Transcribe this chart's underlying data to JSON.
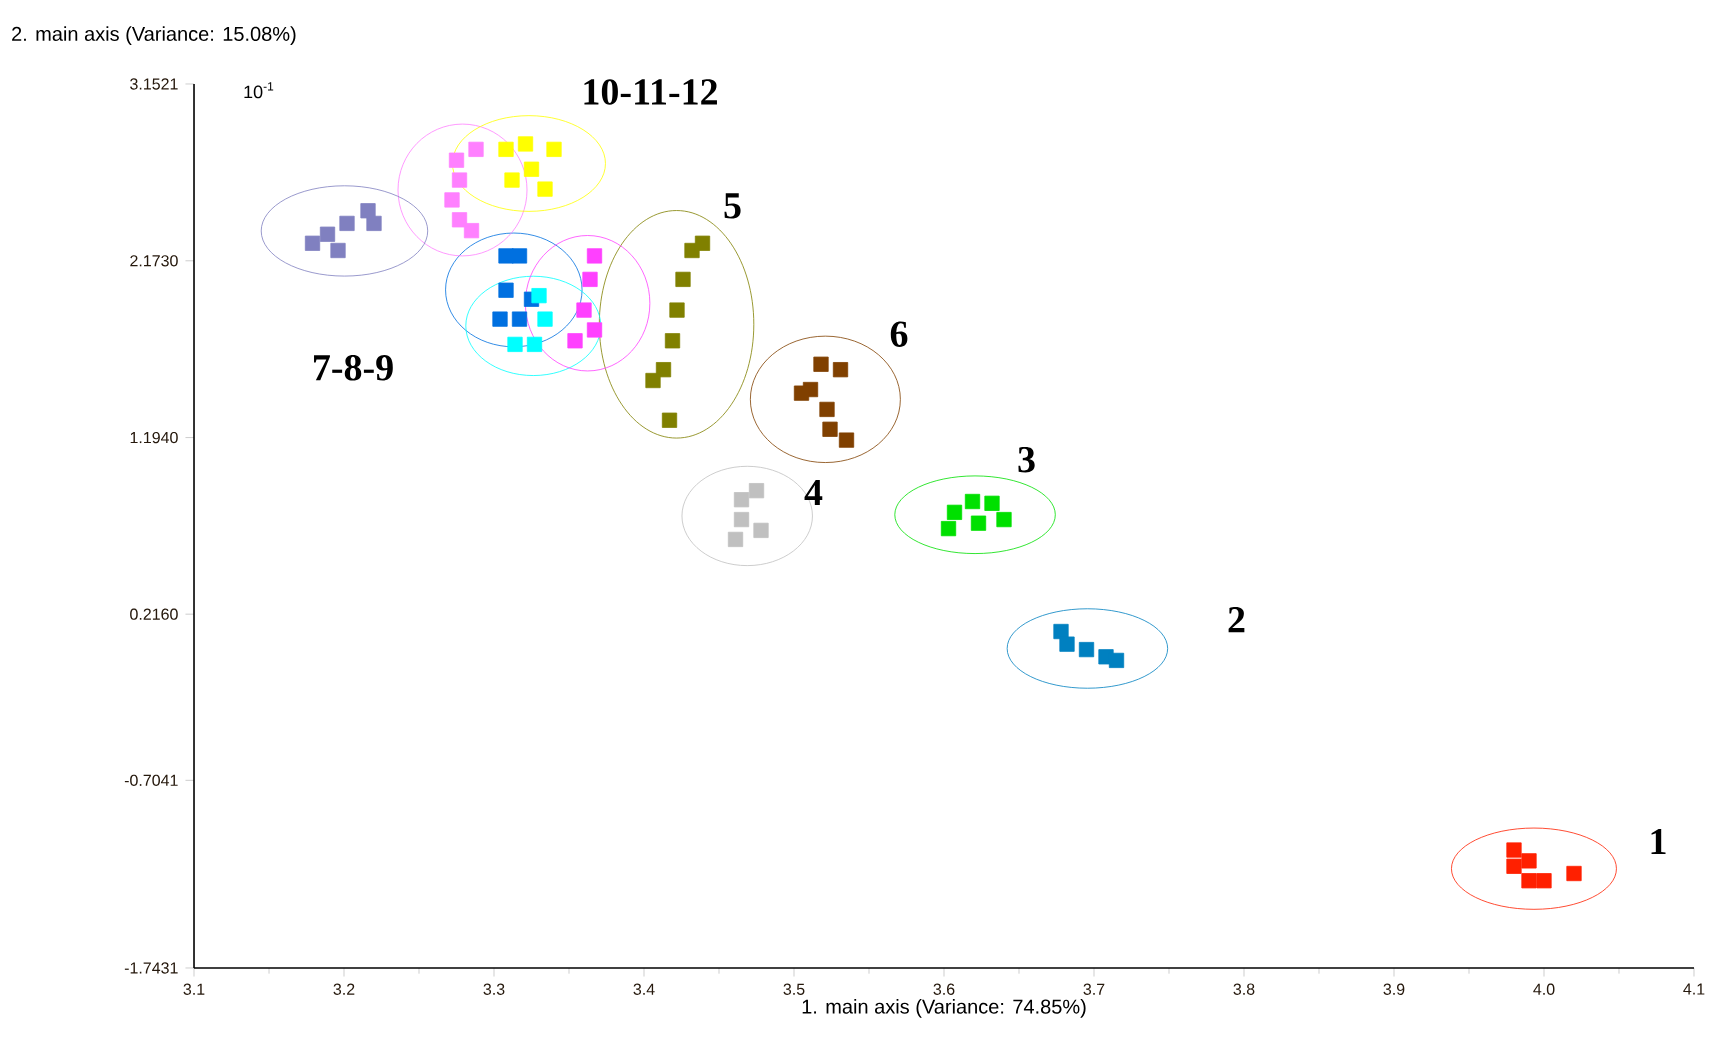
{
  "chart_data": {
    "type": "scatter",
    "xlabel": "1. main axis (Variance: 74.85%)",
    "ylabel": "2. main axis (Variance: 15.08%)",
    "xlim": [
      3.1,
      4.1
    ],
    "ylim": [
      -1.7431,
      3.1521
    ],
    "xticks": [
      3.1,
      3.2,
      3.3,
      3.4,
      3.5,
      3.6,
      3.7,
      3.8,
      3.9,
      {
        "value": 4.0,
        "label": "4.0"
      },
      4.1
    ],
    "yticks": [
      -1.7431,
      -0.7041,
      {
        "value": 0.216,
        "label": "0.2160"
      },
      {
        "value": 1.194,
        "label": "1.1940"
      },
      {
        "value": 2.173,
        "label": "2.1730"
      },
      3.1521
    ],
    "marker": "square",
    "series": [
      {
        "color": "#ff2000",
        "x": [
          3.98,
          3.98,
          3.99,
          4.0,
          4.02,
          3.99
        ],
        "values": [
          -1.09,
          -1.18,
          -1.26,
          -1.26,
          -1.22,
          -1.15
        ]
      },
      {
        "color": "#0080c0",
        "x": [
          3.678,
          3.682,
          3.695,
          3.708,
          3.715
        ],
        "values": [
          0.12,
          0.05,
          0.02,
          -0.02,
          -0.04
        ]
      },
      {
        "color": "#00e000",
        "x": [
          3.603,
          3.607,
          3.619,
          3.632,
          3.64,
          3.623
        ],
        "values": [
          0.69,
          0.78,
          0.84,
          0.83,
          0.74,
          0.72
        ]
      },
      {
        "color": "#c0c0c0",
        "x": [
          3.465,
          3.475,
          3.465,
          3.461,
          3.478
        ],
        "values": [
          0.85,
          0.9,
          0.74,
          0.63,
          0.68
        ]
      },
      {
        "color": "#808000",
        "x": [
          3.432,
          3.426,
          3.422,
          3.419,
          3.413,
          3.406,
          3.417,
          3.439
        ],
        "values": [
          2.23,
          2.07,
          1.9,
          1.73,
          1.57,
          1.51,
          1.29,
          2.27
        ]
      },
      {
        "color": "#804000",
        "x": [
          3.518,
          3.531,
          3.511,
          3.505,
          3.522,
          3.524,
          3.535
        ],
        "values": [
          1.6,
          1.57,
          1.46,
          1.44,
          1.35,
          1.24,
          1.18
        ]
      },
      {
        "color": "#0070e0",
        "x": [
          3.308,
          3.317,
          3.308,
          3.304,
          3.317,
          3.325
        ],
        "values": [
          2.2,
          2.2,
          2.01,
          1.85,
          1.85,
          1.96
        ]
      },
      {
        "color": "#00ffff",
        "x": [
          3.314,
          3.327,
          3.33,
          3.334
        ],
        "values": [
          1.71,
          1.71,
          1.98,
          1.85
        ]
      },
      {
        "color": "#ff40ff",
        "x": [
          3.367,
          3.364,
          3.36,
          3.354,
          3.367
        ],
        "values": [
          2.2,
          2.07,
          1.9,
          1.73,
          1.79
        ]
      },
      {
        "color": "#ff80ff",
        "x": [
          3.275,
          3.277,
          3.272,
          3.277,
          3.288,
          3.285
        ],
        "values": [
          2.73,
          2.62,
          2.51,
          2.4,
          2.79,
          2.34
        ]
      },
      {
        "color": "#ffff00",
        "x": [
          3.308,
          3.321,
          3.34,
          3.312,
          3.334,
          3.325
        ],
        "values": [
          2.79,
          2.82,
          2.79,
          2.62,
          2.57,
          2.68
        ]
      },
      {
        "color": "#8080c0",
        "x": [
          3.179,
          3.189,
          3.202,
          3.216,
          3.22,
          3.196
        ],
        "values": [
          2.27,
          2.32,
          2.38,
          2.45,
          2.38,
          2.23
        ]
      }
    ],
    "annotations": [
      "1",
      "2",
      "3",
      "4",
      "5",
      "6",
      "7-8-9",
      "10-11-12",
      "10$^{-1}$"
    ]
  }
}
